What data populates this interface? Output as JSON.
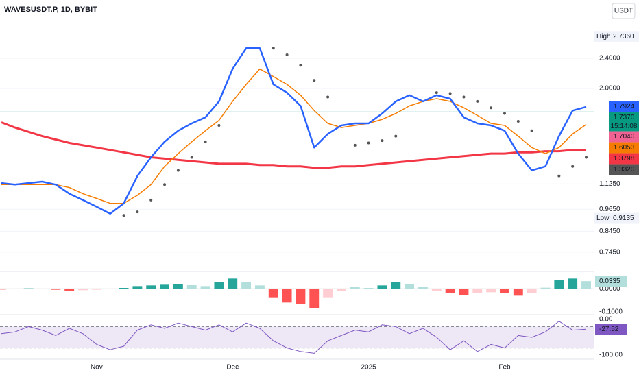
{
  "chart_data": [
    {
      "type": "line",
      "title": "WAVESUSDT.P, 1D, BYBIT",
      "currency": "USDT",
      "log_scale": true,
      "grid": true,
      "categories": [
        null,
        null,
        null,
        null,
        null,
        null,
        null,
        "Nov",
        null,
        null,
        null,
        null,
        null,
        null,
        null,
        null,
        null,
        "Dec",
        null,
        null,
        null,
        null,
        null,
        null,
        null,
        null,
        null,
        "2025",
        null,
        null,
        null,
        null,
        null,
        null,
        null,
        null,
        null,
        "Feb",
        null,
        null,
        null,
        null,
        null,
        null
      ],
      "ylim": [
        0.666,
        3.41
      ],
      "yticks": [
        {
          "value": 0.745,
          "label": "0.7450"
        },
        {
          "value": 0.845,
          "label": "0.8450"
        },
        {
          "value": 0.965,
          "label": "0.9650"
        },
        {
          "value": 1.125,
          "label": "1.1250"
        },
        {
          "value": 2.0,
          "label": "2.0000"
        },
        {
          "value": 2.4,
          "label": "2.4000"
        }
      ],
      "series": [
        {
          "color": "#f23645",
          "width": 3,
          "style": "line",
          "values": [
            1.63,
            1.58,
            1.54,
            1.5,
            1.47,
            1.44,
            1.42,
            1.4,
            1.38,
            1.36,
            1.34,
            1.32,
            1.31,
            1.3,
            1.29,
            1.28,
            1.27,
            1.27,
            1.27,
            1.26,
            1.26,
            1.25,
            1.25,
            1.24,
            1.24,
            1.25,
            1.25,
            1.26,
            1.27,
            1.28,
            1.29,
            1.3,
            1.31,
            1.32,
            1.33,
            1.34,
            1.35,
            1.35,
            1.36,
            1.36,
            1.37,
            1.37,
            1.38,
            1.38
          ]
        },
        {
          "color": "#f57c00",
          "width": 1.5,
          "style": "line",
          "values": [
            1.12,
            1.12,
            1.12,
            1.12,
            1.12,
            1.1,
            1.06,
            1.03,
            1.0,
            1.0,
            1.05,
            1.12,
            1.25,
            1.35,
            1.45,
            1.55,
            1.65,
            1.85,
            2.05,
            2.25,
            2.15,
            2.05,
            1.92,
            1.75,
            1.62,
            1.58,
            1.6,
            1.62,
            1.66,
            1.72,
            1.8,
            1.85,
            1.88,
            1.85,
            1.78,
            1.7,
            1.62,
            1.6,
            1.5,
            1.4,
            1.35,
            1.4,
            1.52,
            1.61
          ]
        },
        {
          "color": "#2962ff",
          "width": 2.5,
          "style": "line",
          "values": [
            1.13,
            1.12,
            1.13,
            1.14,
            1.12,
            1.06,
            1.02,
            0.98,
            0.94,
            1.0,
            1.18,
            1.32,
            1.45,
            1.55,
            1.62,
            1.68,
            1.85,
            2.25,
            2.55,
            2.55,
            2.05,
            1.95,
            1.8,
            1.4,
            1.52,
            1.6,
            1.62,
            1.62,
            1.72,
            1.85,
            1.92,
            1.85,
            1.92,
            1.88,
            1.68,
            1.62,
            1.6,
            1.55,
            1.35,
            1.22,
            1.25,
            1.5,
            1.75,
            1.79
          ]
        },
        {
          "color": "#555555",
          "width": 2,
          "style": "dots",
          "values": [
            null,
            null,
            null,
            null,
            null,
            null,
            null,
            null,
            null,
            0.93,
            0.95,
            1.02,
            1.12,
            1.22,
            1.32,
            1.45,
            1.6,
            null,
            null,
            null,
            2.55,
            2.45,
            2.3,
            2.1,
            1.9,
            null,
            1.42,
            1.44,
            1.46,
            1.5,
            null,
            null,
            1.95,
            1.94,
            1.9,
            1.85,
            1.78,
            1.72,
            1.64,
            1.55,
            null,
            1.18,
            1.25,
            1.32
          ]
        }
      ],
      "high": {
        "text": "High",
        "value": 2.736,
        "label": "2.7360"
      },
      "low": {
        "text": "Low",
        "value": 0.9135,
        "label": "0.9135"
      },
      "price_labels": [
        {
          "value": 1.7924,
          "label": "1.7924",
          "color": "#2962ff"
        },
        {
          "value": 1.737,
          "label": "1.7370",
          "color": "#089981",
          "countdown": "15:14:08"
        },
        {
          "value": 1.704,
          "label": "1.7040",
          "color": "#f06292"
        },
        {
          "value": 1.6053,
          "label": "1.6053",
          "color": "#f57c00"
        },
        {
          "value": 1.3798,
          "label": "1.3798",
          "color": "#f23645"
        },
        {
          "value": 1.332,
          "label": "1.3320",
          "color": "#555555"
        }
      ]
    },
    {
      "type": "bar",
      "pos_color": "#26a69a",
      "pos_light": "#b2dfdb",
      "neg_color": "#ff5252",
      "neg_light": "#ffcdd2",
      "ylim": [
        -0.11,
        0.07
      ],
      "yticks": [
        {
          "value": 0,
          "label": "0.0000"
        },
        {
          "value": -0.1,
          "label": "-0.1000"
        }
      ],
      "values": [
        -0.003,
        -0.002,
        0.002,
        0.001,
        -0.004,
        -0.008,
        -0.006,
        -0.004,
        -0.002,
        0.004,
        0.012,
        0.015,
        0.018,
        0.02,
        0.016,
        0.012,
        0.03,
        0.045,
        0.03,
        0.015,
        -0.04,
        -0.06,
        -0.065,
        -0.085,
        -0.04,
        -0.01,
        0.008,
        0.004,
        0.015,
        0.03,
        0.02,
        0.01,
        -0.008,
        -0.02,
        -0.028,
        -0.02,
        -0.015,
        -0.02,
        -0.03,
        -0.02,
        0.005,
        0.04,
        0.045,
        0.0335
      ]
    },
    {
      "type": "line",
      "color": "#7e57c2",
      "band": [
        -80,
        -20
      ],
      "band_color": "#ede7f6",
      "ylim": [
        -107.7,
        7.7
      ],
      "yticks": [
        {
          "value": 0,
          "label": "0.00"
        },
        {
          "value": -100,
          "label": "-100.00"
        }
      ],
      "values": [
        -40,
        -35,
        -20,
        -30,
        -45,
        -25,
        -40,
        -70,
        -85,
        -75,
        -30,
        -15,
        -25,
        -10,
        -20,
        -30,
        -15,
        -35,
        -10,
        -25,
        -60,
        -80,
        -90,
        -95,
        -60,
        -45,
        -30,
        -35,
        -15,
        -20,
        -40,
        -25,
        -50,
        -85,
        -60,
        -90,
        -70,
        -80,
        -45,
        -50,
        -35,
        -5,
        -30,
        -27.52
      ]
    }
  ]
}
